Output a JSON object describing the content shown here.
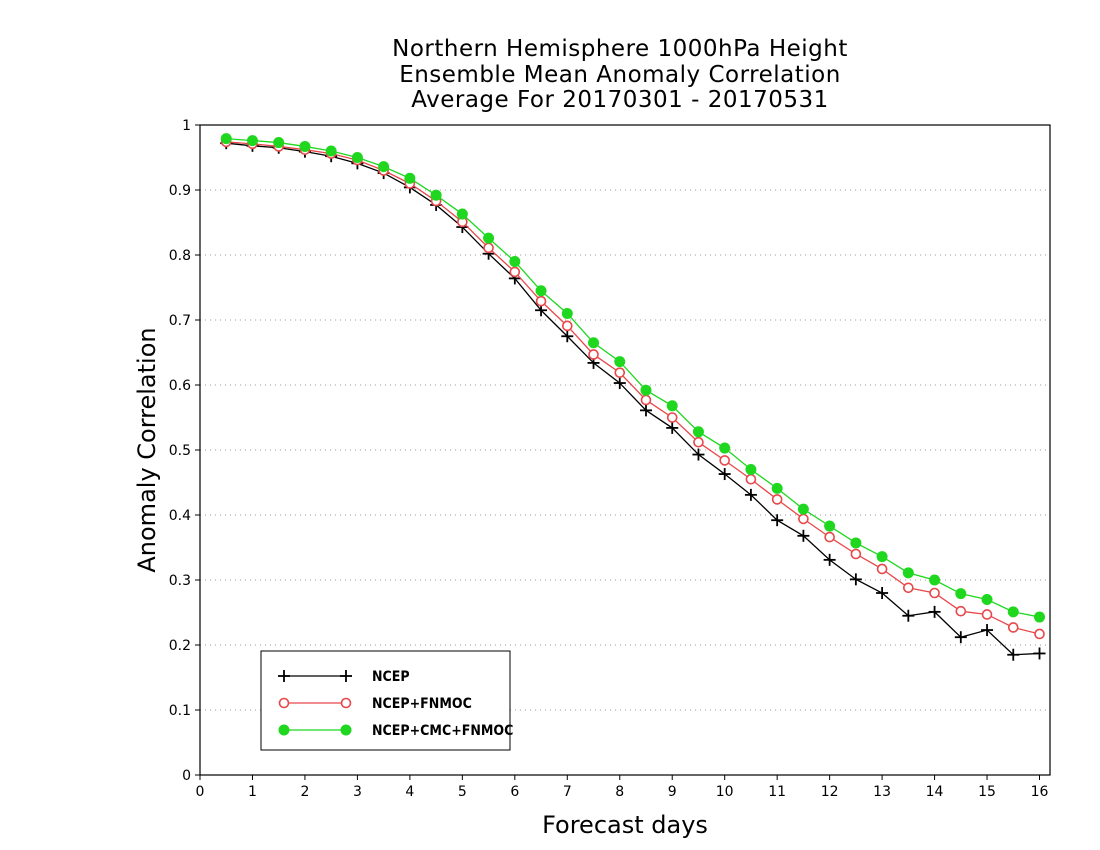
{
  "chart_data": {
    "type": "line",
    "title": [
      "Northern Hemisphere 1000hPa Height",
      "Ensemble Mean Anomaly Correlation",
      "Average For 20170301 - 20170531"
    ],
    "xlabel": "Forecast days",
    "ylabel": "Anomaly Correlation",
    "xlim": [
      0,
      16.2
    ],
    "ylim": [
      0,
      1
    ],
    "xticks": [
      "0",
      "1",
      "2",
      "3",
      "4",
      "5",
      "6",
      "7",
      "8",
      "9",
      "10",
      "11",
      "12",
      "13",
      "14",
      "15",
      "16"
    ],
    "yticks": [
      "0",
      "0.1",
      "0.2",
      "0.3",
      "0.4",
      "0.5",
      "0.6",
      "0.7",
      "0.8",
      "0.9",
      "1"
    ],
    "grid": "horizontal dotted",
    "legend_position": "bottom-left",
    "x": [
      0.5,
      1,
      1.5,
      2,
      2.5,
      3,
      3.5,
      4,
      4.5,
      5,
      5.5,
      6,
      6.5,
      7,
      7.5,
      8,
      8.5,
      9,
      9.5,
      10,
      10.5,
      11,
      11.5,
      12,
      12.5,
      13,
      13.5,
      14,
      14.5,
      15,
      15.5,
      16
    ],
    "series": [
      {
        "name": "NCEP",
        "color": "#000000",
        "marker": "plus",
        "values": [
          0.972,
          0.968,
          0.965,
          0.959,
          0.952,
          0.941,
          0.926,
          0.904,
          0.877,
          0.843,
          0.802,
          0.764,
          0.715,
          0.675,
          0.634,
          0.603,
          0.561,
          0.534,
          0.493,
          0.463,
          0.431,
          0.392,
          0.368,
          0.331,
          0.301,
          0.28,
          0.245,
          0.251,
          0.212,
          0.223,
          0.185,
          0.187
        ]
      },
      {
        "name": "NCEP+FNMOC",
        "color": "#e8484a",
        "marker": "open-circle",
        "values": [
          0.974,
          0.971,
          0.967,
          0.962,
          0.956,
          0.946,
          0.93,
          0.91,
          0.883,
          0.851,
          0.811,
          0.774,
          0.729,
          0.691,
          0.647,
          0.619,
          0.577,
          0.55,
          0.512,
          0.484,
          0.455,
          0.424,
          0.394,
          0.366,
          0.34,
          0.317,
          0.288,
          0.28,
          0.252,
          0.247,
          0.227,
          0.217
        ]
      },
      {
        "name": "NCEP+CMC+FNMOC",
        "color": "#1ed71e",
        "marker": "filled-circle",
        "values": [
          0.979,
          0.976,
          0.973,
          0.967,
          0.96,
          0.95,
          0.936,
          0.918,
          0.892,
          0.863,
          0.826,
          0.79,
          0.745,
          0.71,
          0.665,
          0.636,
          0.592,
          0.568,
          0.528,
          0.503,
          0.47,
          0.441,
          0.409,
          0.383,
          0.357,
          0.336,
          0.311,
          0.3,
          0.279,
          0.27,
          0.251,
          0.243
        ]
      }
    ]
  }
}
